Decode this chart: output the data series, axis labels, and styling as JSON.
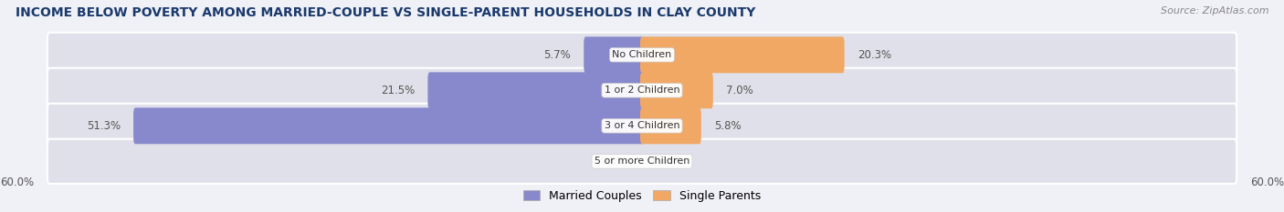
{
  "title": "INCOME BELOW POVERTY AMONG MARRIED-COUPLE VS SINGLE-PARENT HOUSEHOLDS IN CLAY COUNTY",
  "source": "Source: ZipAtlas.com",
  "categories": [
    "No Children",
    "1 or 2 Children",
    "3 or 4 Children",
    "5 or more Children"
  ],
  "married_values": [
    5.7,
    21.5,
    51.3,
    0.0
  ],
  "single_values": [
    20.3,
    7.0,
    5.8,
    0.0
  ],
  "married_color": "#8888cc",
  "single_color": "#f0a864",
  "bar_bg_color": "#e0e0ea",
  "axis_max": 60.0,
  "title_fontsize": 10,
  "label_fontsize": 8.5,
  "category_fontsize": 8,
  "legend_fontsize": 9,
  "source_fontsize": 8,
  "title_color": "#1a3a6b",
  "label_color": "#555555",
  "background_color": "#f0f0f7"
}
